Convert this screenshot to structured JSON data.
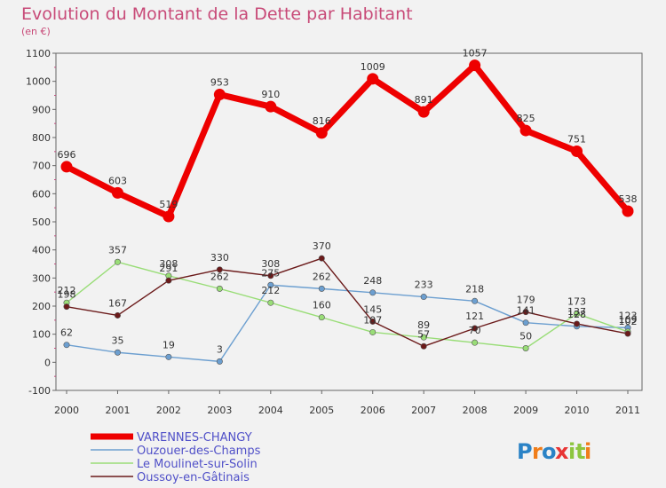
{
  "chart_data": {
    "type": "line",
    "title": "Evolution du Montant de la Dette par Habitant",
    "subtitle": "(en €)",
    "xlabel": "",
    "ylabel": "",
    "ylim": [
      -100,
      1100
    ],
    "yticks": [
      -100,
      0,
      100,
      200,
      300,
      400,
      500,
      600,
      700,
      800,
      900,
      1000,
      1100
    ],
    "grid": false,
    "legend_position": "bottom-left",
    "categories": [
      "2000",
      "2001",
      "2002",
      "2003",
      "2004",
      "2005",
      "2006",
      "2007",
      "2008",
      "2009",
      "2010",
      "2011"
    ],
    "series": [
      {
        "name": "VARENNES-CHANGY",
        "color": "#ee0000",
        "values": [
          696,
          603,
          519,
          953,
          910,
          816,
          1009,
          891,
          1057,
          825,
          751,
          538
        ],
        "labels": [
          "696",
          "603",
          "519",
          "953",
          "910",
          "816",
          "1009",
          "891",
          "1057",
          "825",
          "751",
          "538"
        ]
      },
      {
        "name": "Ouzouer-des-Champs",
        "color": "#6c9fd0",
        "values": [
          62,
          35,
          19,
          3,
          275,
          262,
          248,
          233,
          218,
          141,
          128,
          123
        ],
        "labels": [
          "62",
          "35",
          "19",
          "3",
          "275",
          "262",
          "248",
          "233",
          "218",
          "141",
          "128",
          "123"
        ]
      },
      {
        "name": "Le Moulinet-sur-Solin",
        "color": "#99dd77",
        "values": [
          212,
          357,
          308,
          262,
          212,
          160,
          107,
          89,
          70,
          50,
          173,
          109
        ],
        "labels": [
          "212",
          "357",
          "308",
          "262",
          "212",
          "160",
          "107",
          "89",
          "70",
          "50",
          "173",
          "109"
        ]
      },
      {
        "name": "Oussoy-en-Gâtinais",
        "color": "#6b1a1a",
        "values": [
          198,
          167,
          291,
          330,
          308,
          370,
          145,
          57,
          121,
          179,
          137,
          102
        ],
        "labels": [
          "198",
          "167",
          "291",
          "330",
          "308",
          "370",
          "145",
          "57",
          "121",
          "179",
          "137",
          "102"
        ]
      }
    ]
  },
  "logo": {
    "text": "Proxiti",
    "letters": [
      "P",
      "r",
      "o",
      "x",
      "i",
      "t",
      "i"
    ],
    "colors": [
      "#2b83c6",
      "#f07d1a",
      "#2b83c6",
      "#e83535",
      "#8dc63f",
      "#8dc63f",
      "#f07d1a"
    ]
  }
}
